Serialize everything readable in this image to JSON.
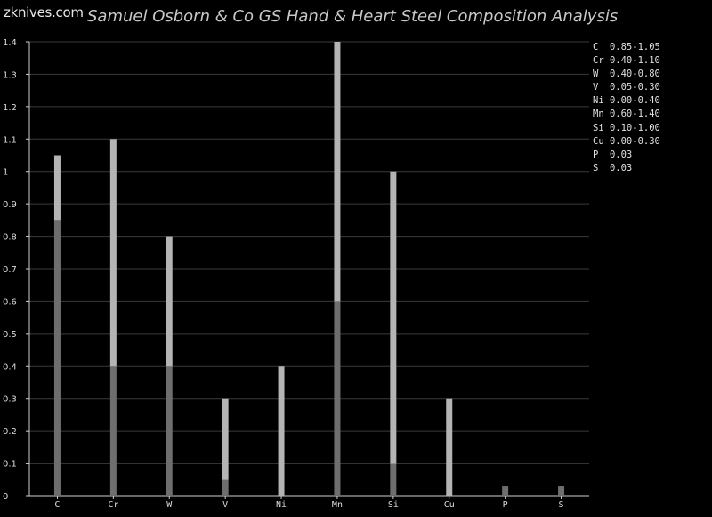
{
  "brand": "zknives.com",
  "chart_data": {
    "type": "bar",
    "title": "Samuel Osborn & Co GS Hand & Heart Steel Composition Analysis",
    "categories": [
      "C",
      "Cr",
      "W",
      "V",
      "Ni",
      "Mn",
      "Si",
      "Cu",
      "P",
      "S"
    ],
    "series": [
      {
        "name": "min",
        "values": [
          0.85,
          0.4,
          0.4,
          0.05,
          0.0,
          0.6,
          0.1,
          0.0,
          0.03,
          0.03
        ]
      },
      {
        "name": "max",
        "values": [
          1.05,
          1.1,
          0.8,
          0.3,
          0.4,
          1.4,
          1.0,
          0.3,
          0.03,
          0.03
        ]
      }
    ],
    "ylim": [
      0,
      1.4
    ],
    "yticks": [
      "0",
      "0.1",
      "0.2",
      "0.3",
      "0.4",
      "0.5",
      "0.6",
      "0.7",
      "0.8",
      "0.9",
      "1",
      "1.1",
      "1.2",
      "1.3",
      "1.4"
    ],
    "grid": true,
    "legend_position": "right",
    "legend": [
      {
        "el": "C",
        "range": "0.85-1.05"
      },
      {
        "el": "Cr",
        "range": "0.40-1.10"
      },
      {
        "el": "W",
        "range": "0.40-0.80"
      },
      {
        "el": "V",
        "range": "0.05-0.30"
      },
      {
        "el": "Ni",
        "range": "0.00-0.40"
      },
      {
        "el": "Mn",
        "range": "0.60-1.40"
      },
      {
        "el": "Si",
        "range": "0.10-1.00"
      },
      {
        "el": "Cu",
        "range": "0.00-0.30"
      },
      {
        "el": "P",
        "range": "0.03"
      },
      {
        "el": "S",
        "range": "0.03"
      }
    ]
  },
  "colors": {
    "background": "#000000",
    "grid": "#3a3a3a",
    "axis": "#cfcfcf",
    "bar_min": "#6e6e6e",
    "bar_range": "#b4b4b4"
  }
}
